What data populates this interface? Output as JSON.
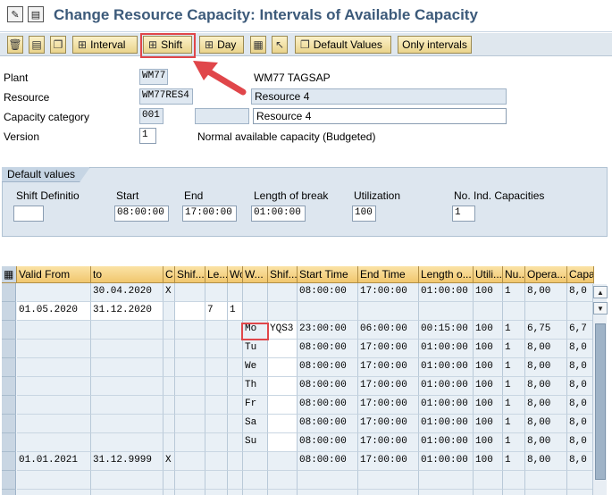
{
  "title": "Change Resource Capacity: Intervals of Available Capacity",
  "colors": {
    "title": "#3c5a7a",
    "highlight": "#e0464a",
    "button": "#ead48c"
  },
  "toolbar": {
    "interval": "Interval",
    "shift": "Shift",
    "day": "Day",
    "default_values": "Default Values",
    "only_intervals": "Only intervals"
  },
  "header": {
    "plant_label": "Plant",
    "plant_value": "WM77",
    "plant_desc": "WM77 TAGSAP",
    "resource_label": "Resource",
    "resource_value": "WM77RES4",
    "resource_desc": "Resource 4",
    "capcat_label": "Capacity category",
    "capcat_value": "001",
    "capcat_desc": "Resource 4",
    "version_label": "Version",
    "version_value": "1",
    "version_desc": "Normal available capacity (Budgeted)"
  },
  "defaults": {
    "tab": "Default values",
    "shift_def_label": "Shift Definitio",
    "start_label": "Start",
    "end_label": "End",
    "break_label": "Length of break",
    "util_label": "Utilization",
    "nocap_label": "No. Ind. Capacities",
    "shift_def_value": "",
    "start_value": "08:00:00",
    "end_value": "17:00:00",
    "break_value": "01:00:00",
    "util_value": "100",
    "nocap_value": "1"
  },
  "table": {
    "columns": [
      "Valid From",
      "to",
      "C",
      "Shif...",
      "Le...",
      "Wo",
      "W...",
      "Shif...",
      "Start Time",
      "End Time",
      "Length o...",
      "Utili...",
      "Nu...",
      "Opera...",
      "Capa"
    ],
    "rows": [
      [
        "",
        "30.04.2020",
        "X",
        "",
        "",
        "",
        "",
        "",
        "08:00:00",
        "17:00:00",
        "01:00:00",
        "100",
        "1",
        "8,00",
        "8,0"
      ],
      [
        "01.05.2020",
        "31.12.2020",
        "",
        "",
        "7",
        "1",
        "",
        "",
        "",
        "",
        "",
        "",
        "",
        "",
        ""
      ],
      [
        "",
        "",
        "",
        "",
        "",
        "",
        "Mo",
        "YQS3",
        "23:00:00",
        "06:00:00",
        "00:15:00",
        "100",
        "1",
        "6,75",
        "6,7"
      ],
      [
        "",
        "",
        "",
        "",
        "",
        "",
        "Tu",
        "",
        "08:00:00",
        "17:00:00",
        "01:00:00",
        "100",
        "1",
        "8,00",
        "8,0"
      ],
      [
        "",
        "",
        "",
        "",
        "",
        "",
        "We",
        "",
        "08:00:00",
        "17:00:00",
        "01:00:00",
        "100",
        "1",
        "8,00",
        "8,0"
      ],
      [
        "",
        "",
        "",
        "",
        "",
        "",
        "Th",
        "",
        "08:00:00",
        "17:00:00",
        "01:00:00",
        "100",
        "1",
        "8,00",
        "8,0"
      ],
      [
        "",
        "",
        "",
        "",
        "",
        "",
        "Fr",
        "",
        "08:00:00",
        "17:00:00",
        "01:00:00",
        "100",
        "1",
        "8,00",
        "8,0"
      ],
      [
        "",
        "",
        "",
        "",
        "",
        "",
        "Sa",
        "",
        "08:00:00",
        "17:00:00",
        "01:00:00",
        "100",
        "1",
        "8,00",
        "8,0"
      ],
      [
        "",
        "",
        "",
        "",
        "",
        "",
        "Su",
        "",
        "08:00:00",
        "17:00:00",
        "01:00:00",
        "100",
        "1",
        "8,00",
        "8,0"
      ],
      [
        "01.01.2021",
        "31.12.9999",
        "X",
        "",
        "",
        "",
        "",
        "",
        "08:00:00",
        "17:00:00",
        "01:00:00",
        "100",
        "1",
        "8,00",
        "8,0"
      ],
      [
        "",
        "",
        "",
        "",
        "",
        "",
        "",
        "",
        "",
        "",
        "",
        "",
        "",
        "",
        ""
      ],
      [
        "",
        "",
        "",
        "",
        "",
        "",
        "",
        "",
        "",
        "",
        "",
        "",
        "",
        "",
        ""
      ]
    ]
  }
}
